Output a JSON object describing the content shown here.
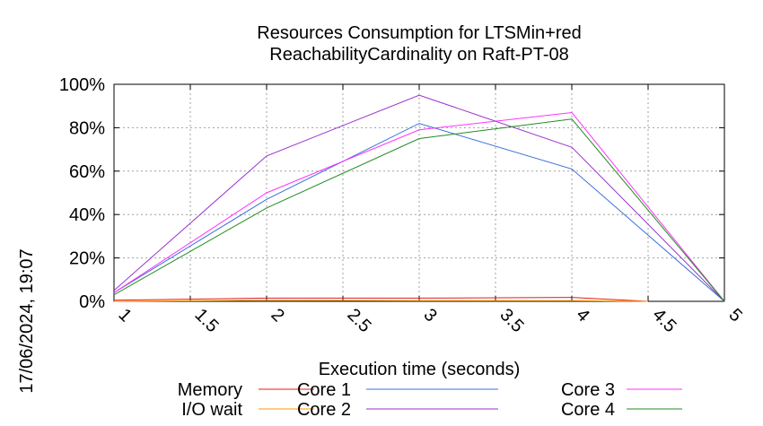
{
  "chart_data": {
    "type": "line",
    "title_lines": [
      "Resources Consumption for LTSMin+red",
      "ReachabilityCardinality on Raft-PT-08"
    ],
    "xlabel": "Execution time (seconds)",
    "ylabel": "",
    "xlim": [
      1,
      5
    ],
    "ylim": [
      0,
      100
    ],
    "x_ticks": [
      "1",
      "1.5",
      "2",
      "2.5",
      "3",
      "3.5",
      "4",
      "4.5",
      "5"
    ],
    "x_tick_values": [
      1,
      1.5,
      2,
      2.5,
      3,
      3.5,
      4,
      4.5,
      5
    ],
    "y_ticks": [
      "0%",
      "20%",
      "40%",
      "60%",
      "80%",
      "100%"
    ],
    "y_tick_values": [
      0,
      20,
      40,
      60,
      80,
      100
    ],
    "grid": true,
    "legend_position": "bottom",
    "timestamp": "17/06/2024, 19:07",
    "series": [
      {
        "name": "Memory",
        "color": "#e41a1c",
        "x": [
          1,
          2,
          3,
          4,
          4.5
        ],
        "values": [
          0.5,
          1.5,
          1.5,
          1.8,
          0
        ]
      },
      {
        "name": "I/O wait",
        "color": "#ff9900",
        "x": [
          1,
          2,
          3,
          4,
          4.5
        ],
        "values": [
          0,
          0.5,
          0.3,
          0.3,
          0
        ]
      },
      {
        "name": "Core 1",
        "color": "#3a6fd8",
        "x": [
          1,
          2,
          3,
          4,
          5
        ],
        "values": [
          4,
          47,
          82,
          61,
          0
        ]
      },
      {
        "name": "Core 2",
        "color": "#9932cc",
        "x": [
          1,
          2,
          3,
          4,
          5
        ],
        "values": [
          5,
          67,
          95,
          71,
          0
        ]
      },
      {
        "name": "Core 3",
        "color": "#ff33ff",
        "x": [
          1,
          2,
          3,
          4,
          5
        ],
        "values": [
          4,
          50,
          79,
          87,
          0
        ]
      },
      {
        "name": "Core 4",
        "color": "#228b22",
        "x": [
          1,
          2,
          3,
          4,
          5
        ],
        "values": [
          3,
          43,
          75,
          84,
          0
        ]
      }
    ]
  }
}
